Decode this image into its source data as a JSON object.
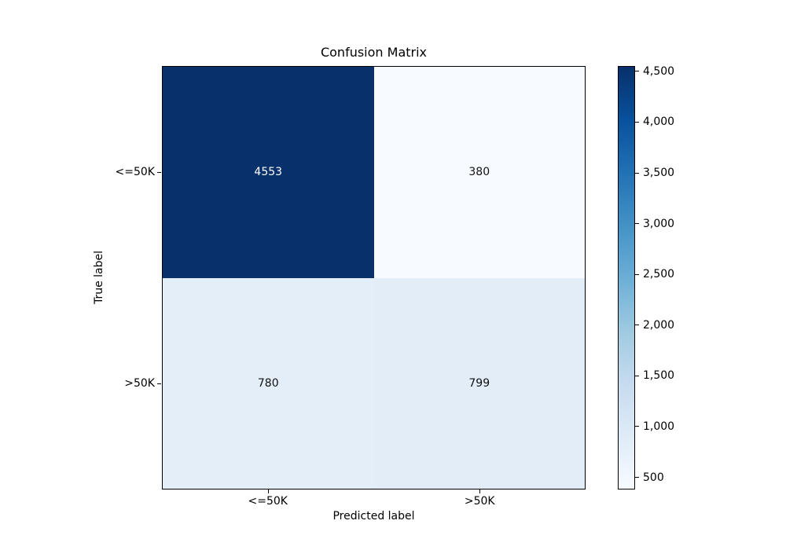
{
  "title": "Confusion Matrix",
  "chart_data": {
    "type": "heatmap",
    "title": "Confusion Matrix",
    "xlabel": "Predicted label",
    "ylabel": "True label",
    "x_tick_labels": [
      "<=50K",
      ">50K"
    ],
    "y_tick_labels": [
      "<=50K",
      ">50K"
    ],
    "matrix": [
      [
        4553,
        380
      ],
      [
        780,
        799
      ]
    ],
    "cells": [
      {
        "row": "<=50K",
        "col": "<=50K",
        "value": "4553",
        "color": "#08306b",
        "text_color": "#ffffff"
      },
      {
        "row": "<=50K",
        "col": ">50K",
        "value": "380",
        "color": "#f7fbff",
        "text_color": "#111111"
      },
      {
        "row": ">50K",
        "col": "<=50K",
        "value": "780",
        "color": "#e3eef9",
        "text_color": "#111111"
      },
      {
        "row": ">50K",
        "col": ">50K",
        "value": "799",
        "color": "#e2edf8",
        "text_color": "#111111"
      }
    ],
    "vmin": 380,
    "vmax": 4553,
    "colormap": "Blues",
    "colormap_stops": [
      "#f7fbff",
      "#deebf7",
      "#c6dbef",
      "#9ecae1",
      "#6baed6",
      "#4292c6",
      "#2171b5",
      "#08519c",
      "#08306b"
    ],
    "grid": false,
    "legend_position": "right-colorbar",
    "colorbar": {
      "ticks": [
        {
          "value": 500,
          "label": "500"
        },
        {
          "value": 1000,
          "label": "1,000"
        },
        {
          "value": 1500,
          "label": "1,500"
        },
        {
          "value": 2000,
          "label": "2,000"
        },
        {
          "value": 2500,
          "label": "2,500"
        },
        {
          "value": 3000,
          "label": "3,000"
        },
        {
          "value": 3500,
          "label": "3,500"
        },
        {
          "value": 4000,
          "label": "4,000"
        },
        {
          "value": 4500,
          "label": "4,500"
        }
      ]
    }
  }
}
